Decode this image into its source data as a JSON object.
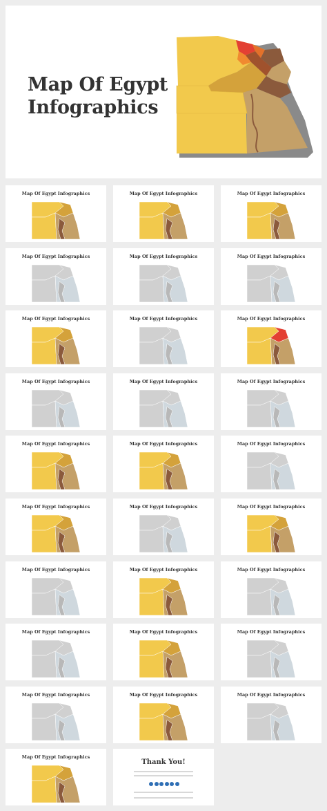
{
  "hero": {
    "title_line1": "Map Of Egypt",
    "title_line2": "Infographics"
  },
  "slide_title": "Map Of Egypt Infographics",
  "closing": {
    "title": "Thank You!"
  },
  "colors": {
    "yellow": "#f2c94c",
    "gold": "#d4a23b",
    "tan": "#c4a068",
    "brown": "#8b5a3c",
    "red": "#e34033",
    "gray": "#d0d0d0",
    "blue_gray": "#cfd8de"
  },
  "slides": [
    {
      "variant": "yellow"
    },
    {
      "variant": "yellow"
    },
    {
      "variant": "yellow"
    },
    {
      "variant": "gray"
    },
    {
      "variant": "gray"
    },
    {
      "variant": "gray"
    },
    {
      "variant": "yellow"
    },
    {
      "variant": "gray"
    },
    {
      "variant": "red"
    },
    {
      "variant": "gray"
    },
    {
      "variant": "gray"
    },
    {
      "variant": "gray"
    },
    {
      "variant": "yellow"
    },
    {
      "variant": "yellow"
    },
    {
      "variant": "gray"
    },
    {
      "variant": "yellow"
    },
    {
      "variant": "gray"
    },
    {
      "variant": "yellow"
    },
    {
      "variant": "gray"
    },
    {
      "variant": "yellow"
    },
    {
      "variant": "gray"
    },
    {
      "variant": "gray"
    },
    {
      "variant": "yellow"
    },
    {
      "variant": "gray"
    },
    {
      "variant": "gray"
    },
    {
      "variant": "yellow"
    },
    {
      "variant": "gray"
    },
    {
      "variant": "yellow"
    },
    {
      "variant": "thanks"
    }
  ]
}
